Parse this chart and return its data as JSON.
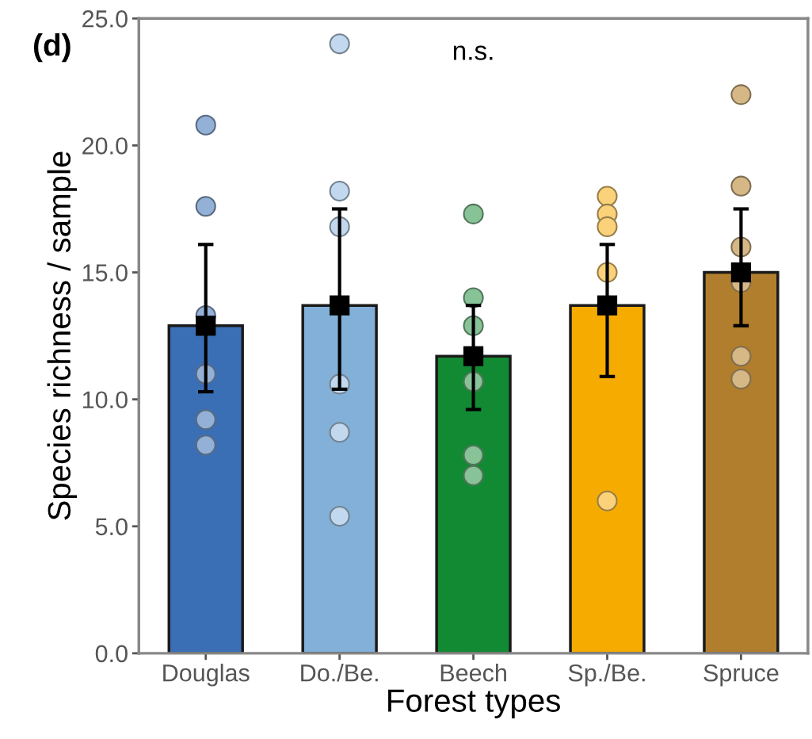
{
  "chart_data": {
    "type": "bar",
    "ylabel": "Species richness / sample",
    "xlabel": "Forest types",
    "categories": [
      "Douglas",
      "Do./Be.",
      "Beech",
      "Sp./Be.",
      "Spruce"
    ],
    "series": [
      {
        "values": [
          12.9,
          13.7,
          11.7,
          13.7,
          15.0
        ],
        "colors": [
          "#3a6fb5",
          "#82b0d8",
          "#128a34",
          "#f5ab00",
          "#b07e2c"
        ],
        "errors": [
          [
            10.3,
            16.1
          ],
          [
            10.4,
            17.5
          ],
          [
            9.6,
            13.7
          ],
          [
            10.9,
            16.1
          ],
          [
            12.9,
            17.5
          ]
        ]
      },
      {
        "type": "scatter",
        "x": [
          "Douglas",
          "Do./Be.",
          "Beech",
          "Sp./Be.",
          "Spruce"
        ],
        "values": [
          12.9,
          13.7,
          11.7,
          13.7,
          15.0
        ],
        "color": "#000000",
        "marker": "square"
      },
      {
        "type": "scatter",
        "x": [
          "Douglas",
          "Douglas",
          "Douglas",
          "Douglas",
          "Douglas",
          "Douglas",
          "Do./Be.",
          "Do./Be.",
          "Do./Be.",
          "Do./Be.",
          "Do./Be.",
          "Do./Be.",
          "Beech",
          "Beech",
          "Beech",
          "Beech",
          "Beech",
          "Beech",
          "Sp./Be.",
          "Sp./Be.",
          "Sp./Be.",
          "Sp./Be.",
          "Sp./Be.",
          "Spruce",
          "Spruce",
          "Spruce",
          "Spruce",
          "Spruce",
          "Spruce"
        ],
        "values": [
          20.8,
          17.6,
          13.3,
          11.0,
          9.2,
          8.2,
          24.0,
          18.2,
          16.8,
          10.6,
          8.7,
          5.4,
          17.3,
          14.0,
          12.9,
          10.7,
          7.8,
          7.0,
          18.0,
          17.3,
          16.8,
          15.0,
          6.0,
          22.0,
          18.4,
          16.0,
          14.6,
          11.7,
          10.8
        ],
        "colors": [
          "#93b0d6",
          "#93b0d6",
          "#93b0d6",
          "#93b0d6",
          "#93b0d6",
          "#93b0d6",
          "#c2d8ee",
          "#c2d8ee",
          "#c2d8ee",
          "#c2d8ee",
          "#c2d8ee",
          "#c2d8ee",
          "#88c397",
          "#88c397",
          "#88c397",
          "#88c397",
          "#88c397",
          "#88c397",
          "#fbd27a",
          "#fbd27a",
          "#fbd27a",
          "#fbd27a",
          "#fbd27a",
          "#d6b887",
          "#d6b887",
          "#d6b887",
          "#d6b887",
          "#d6b887",
          "#d6b887"
        ],
        "marker": "circle"
      }
    ],
    "ylim": [
      0,
      25
    ],
    "yticks": [
      {
        "value": 0,
        "label": "0.0"
      },
      {
        "value": 5,
        "label": "5.0"
      },
      {
        "value": 10,
        "label": "10.0"
      },
      {
        "value": 15,
        "label": "15.0"
      },
      {
        "value": 20,
        "label": "20.0"
      },
      {
        "value": 25,
        "label": "25.0"
      }
    ],
    "annotations": [
      "(d)",
      "n.s."
    ],
    "grid": false,
    "legend": false
  }
}
